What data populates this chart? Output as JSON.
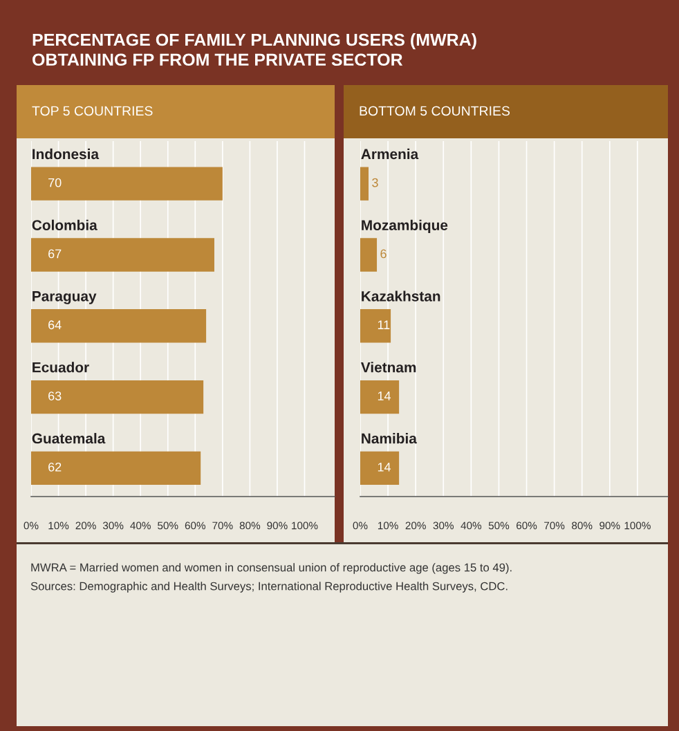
{
  "chart_data": [
    {
      "type": "bar",
      "orientation": "horizontal",
      "title": "PERCENTAGE OF FAMILY PLANNING USERS (MWRA)\nOBTAINING FP FROM THE PRIVATE SECTOR",
      "subtitle": "TOP 5 COUNTRIES",
      "categories": [
        "Indonesia",
        "Colombia",
        "Paraguay",
        "Ecuador",
        "Guatemala"
      ],
      "values": [
        70,
        67,
        64,
        63,
        62
      ],
      "color": "#bd8839",
      "data_labels": true,
      "xlim": [
        0,
        111
      ],
      "xticks": [
        {
          "value": 0,
          "label": "0%"
        },
        {
          "value": 10,
          "label": "10%"
        },
        {
          "value": 20,
          "label": "20%"
        },
        {
          "value": 30,
          "label": "30%"
        },
        {
          "value": 40,
          "label": "40%"
        },
        {
          "value": 50,
          "label": "50%"
        },
        {
          "value": 60,
          "label": "60%"
        },
        {
          "value": 70,
          "label": "70%"
        },
        {
          "value": 80,
          "label": "80%"
        },
        {
          "value": 90,
          "label": "90%"
        },
        {
          "value": 100,
          "label": "100%"
        }
      ],
      "grid": "x",
      "annotations": [
        "MWRA = Married women and women in consensual union of reproductive age (ages 15 to 49).",
        "Sources: Demographic and Health Surveys; International Reproductive Health Surveys, CDC."
      ]
    },
    {
      "type": "bar",
      "orientation": "horizontal",
      "subtitle": "BOTTOM 5 COUNTRIES",
      "categories": [
        "Armenia",
        "Mozambique",
        "Kazakhstan",
        "Vietnam",
        "Namibia"
      ],
      "values": [
        3,
        6,
        11,
        14,
        14
      ],
      "color": "#bd8839",
      "data_labels": true,
      "xlim": [
        0,
        111
      ],
      "xticks": [
        {
          "value": 0,
          "label": "0%"
        },
        {
          "value": 10,
          "label": "10%"
        },
        {
          "value": 20,
          "label": "20%"
        },
        {
          "value": 30,
          "label": "30%"
        },
        {
          "value": 40,
          "label": "40%"
        },
        {
          "value": 50,
          "label": "50%"
        },
        {
          "value": 60,
          "label": "60%"
        },
        {
          "value": 70,
          "label": "70%"
        },
        {
          "value": 80,
          "label": "80%"
        },
        {
          "value": 90,
          "label": "90%"
        },
        {
          "value": 100,
          "label": "100%"
        }
      ],
      "grid": "x"
    }
  ]
}
